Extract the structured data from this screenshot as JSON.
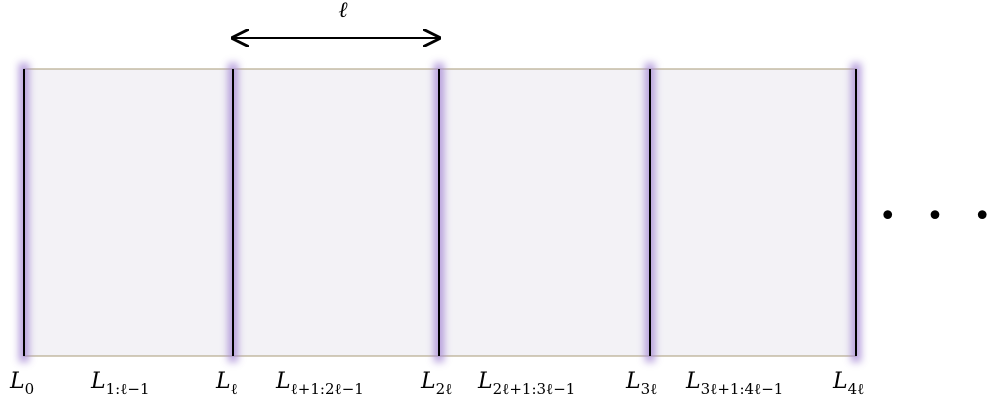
{
  "colors": {
    "panel_fill": "#f3f2f6",
    "panel_border": "#b6ab8e",
    "glow": "#a78bd6",
    "line": "#000000"
  },
  "span_label": "ℓ",
  "ellipsis": "• • •",
  "boundary_labels": [
    {
      "base": "L",
      "sub": "0"
    },
    {
      "base": "L",
      "sub": "ℓ"
    },
    {
      "base": "L",
      "sub": "2ℓ"
    },
    {
      "base": "L",
      "sub": "3ℓ"
    },
    {
      "base": "L",
      "sub": "4ℓ"
    }
  ],
  "segment_labels": [
    {
      "base": "L",
      "sub": "1:ℓ−1"
    },
    {
      "base": "L",
      "sub": "ℓ+1:2ℓ−1"
    },
    {
      "base": "L",
      "sub": "2ℓ+1:3ℓ−1"
    },
    {
      "base": "L",
      "sub": "3ℓ+1:4ℓ−1"
    }
  ]
}
